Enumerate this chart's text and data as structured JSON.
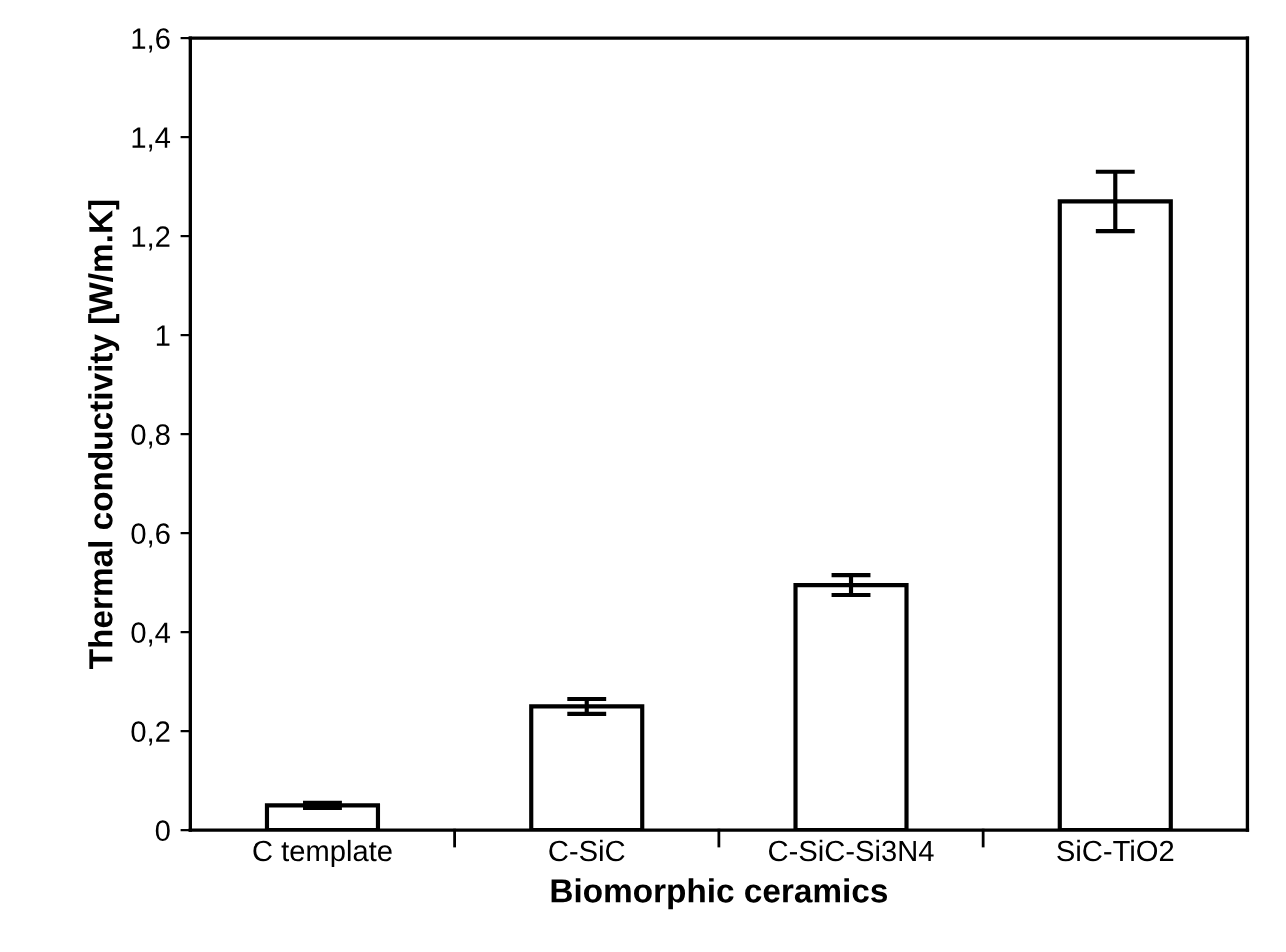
{
  "chart_data": {
    "type": "bar",
    "xlabel": "Biomorphic ceramics",
    "ylabel": "Thermal conductivity [W/m.K]",
    "categories": [
      "C template",
      "C-SiC",
      "C-SiC-Si3N4",
      "SiC-TiO2"
    ],
    "values": [
      0.05,
      0.25,
      0.495,
      1.27
    ],
    "errors": [
      0.005,
      0.015,
      0.02,
      0.06
    ],
    "color": "#ffffff",
    "ylim": [
      0,
      1.6
    ],
    "yticks": [
      0,
      {
        "value": 0.2,
        "label": "0,2"
      },
      {
        "value": 0.4,
        "label": "0,4"
      },
      {
        "value": 0.6,
        "label": "0,6"
      },
      {
        "value": 0.8,
        "label": "0,8"
      },
      1,
      {
        "value": 1.2,
        "label": "1,2"
      },
      {
        "value": 1.4,
        "label": "1,4"
      },
      {
        "value": 1.6,
        "label": "1,6"
      }
    ],
    "grid": false
  }
}
